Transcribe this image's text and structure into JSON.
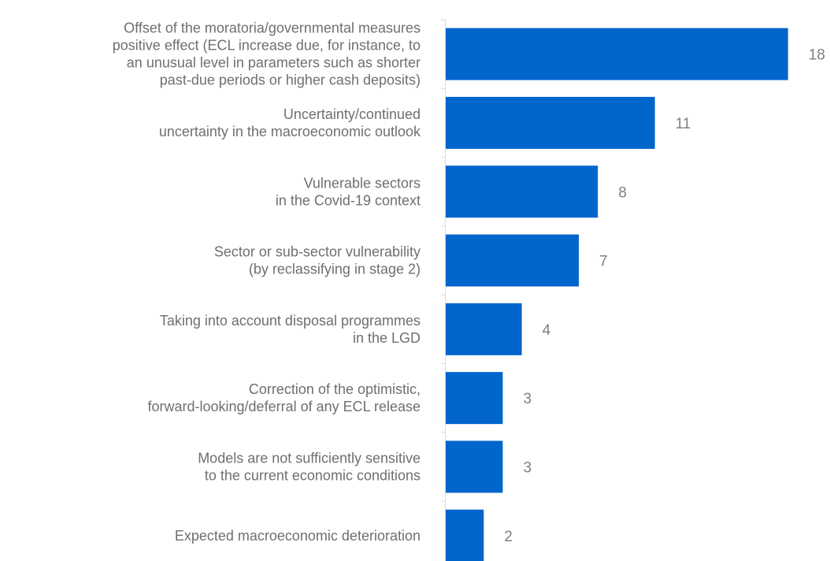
{
  "chart_data": {
    "type": "bar",
    "orientation": "horizontal",
    "categories": [
      [
        "Offset of the moratoria/governmental measures",
        "positive effect (ECL increase due, for instance, to",
        "an unusual level in parameters such as shorter",
        "past-due periods or higher cash deposits)"
      ],
      [
        "Uncertainty/continued",
        "uncertainty in the macroeconomic outlook"
      ],
      [
        "Vulnerable sectors",
        "in the Covid-19 context"
      ],
      [
        "Sector or sub-sector vulnerability",
        "(by reclassifying in stage 2)"
      ],
      [
        "Taking into account disposal programmes",
        "in the LGD"
      ],
      [
        "Correction of the optimistic,",
        "forward-looking/deferral of any ECL release"
      ],
      [
        "Models are not sufficiently sensitive",
        "to the current economic conditions"
      ],
      [
        "Expected macroeconomic deterioration"
      ]
    ],
    "values": [
      18,
      11,
      8,
      7,
      4,
      3,
      3,
      2
    ],
    "value_labels": [
      "18",
      "11",
      "8",
      "7",
      "4",
      "3",
      "3",
      "2"
    ],
    "xlim": [
      0,
      19
    ],
    "bar_color": "#0066CC",
    "axis_color": "#d9d9d9",
    "title": "",
    "xlabel": "",
    "ylabel": ""
  }
}
